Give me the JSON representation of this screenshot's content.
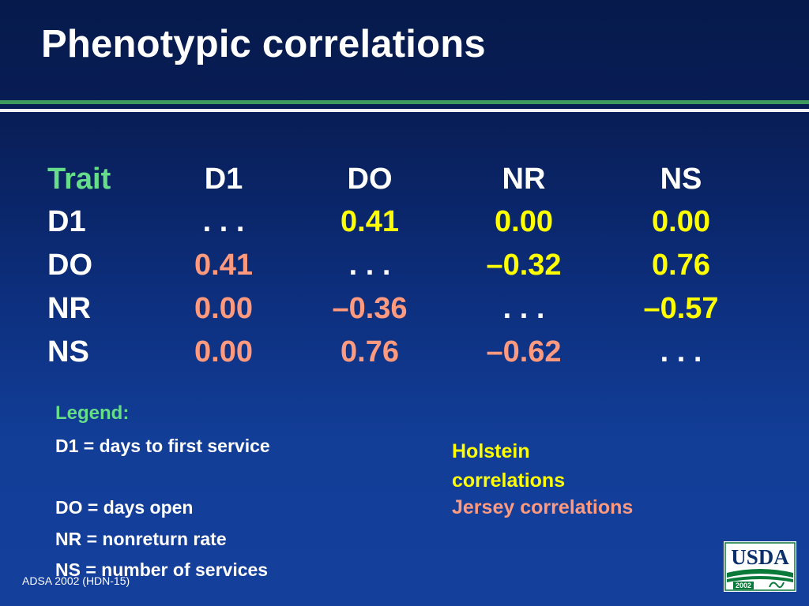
{
  "title": "Phenotypic correlations",
  "table": {
    "header": [
      "Trait",
      "D1",
      "DO",
      "NR",
      "NS"
    ],
    "rows": [
      {
        "label": "D1",
        "cells": [
          ". . .",
          "0.41",
          "0.00",
          "0.00"
        ]
      },
      {
        "label": "DO",
        "cells": [
          "0.41",
          ". . .",
          "–0.32",
          "0.76"
        ]
      },
      {
        "label": "NR",
        "cells": [
          "0.00",
          "–0.36",
          ". . .",
          "–0.57"
        ]
      },
      {
        "label": "NS",
        "cells": [
          "0.00",
          "0.76",
          "–0.62",
          ". . ."
        ]
      }
    ]
  },
  "legend": {
    "title": "Legend:",
    "items": [
      "D1 = days to first service",
      "DO = days open",
      "NR = nonreturn rate",
      "NS = number of services"
    ]
  },
  "key": {
    "holstein": "Holstein correlations",
    "jersey": "Jersey correlations"
  },
  "footer": "ADSA 2002 (HDN-15)",
  "logo": {
    "text": "USDA",
    "year": "2002"
  },
  "colors": {
    "background": "#0d2f7e",
    "title": "#ffffff",
    "header_accent": "#66dd88",
    "holstein": "#ffff00",
    "jersey": "#ff9a7e",
    "rule_green": "#3e9a5c"
  }
}
